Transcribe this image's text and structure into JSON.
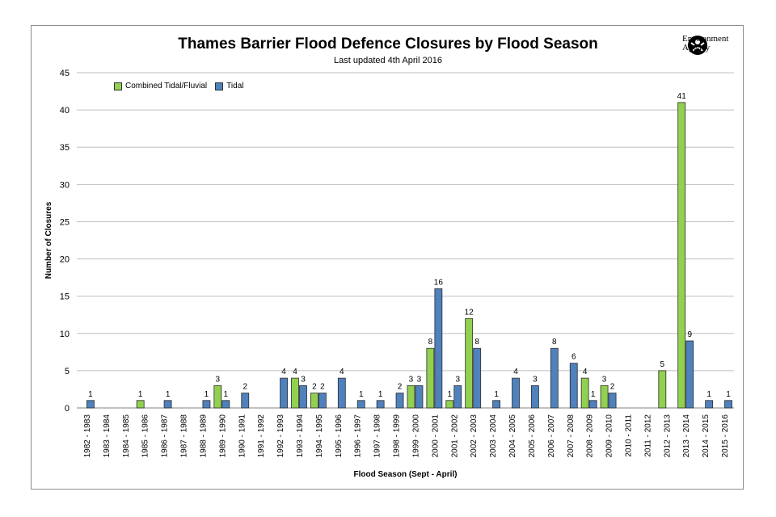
{
  "chart_data": {
    "type": "bar",
    "title": "Thames Barrier Flood Defence Closures by Flood Season",
    "subtitle": "Last updated 4th April 2016",
    "xlabel": "Flood Season (Sept - April)",
    "ylabel": "Number of Closures",
    "ylim": [
      0,
      45
    ],
    "yticks": [
      0,
      5,
      10,
      15,
      20,
      25,
      30,
      35,
      40,
      45
    ],
    "grid": true,
    "legend_position": "top-left",
    "categories": [
      "1982 - 1983",
      "1983 - 1984",
      "1984 - 1985",
      "1985 - 1986",
      "1986 - 1987",
      "1987 - 1988",
      "1988 - 1989",
      "1989 - 1990",
      "1990 - 1991",
      "1991 - 1992",
      "1992 - 1993",
      "1993 - 1994",
      "1994 - 1995",
      "1995 - 1996",
      "1996 - 1997",
      "1997 - 1998",
      "1998 - 1999",
      "1999 - 2000",
      "2000 - 2001",
      "2001 - 2002",
      "2002 - 2003",
      "2003 - 2004",
      "2004 - 2005",
      "2005 - 2006",
      "2006 - 2007",
      "2007 - 2008",
      "2008 - 2009",
      "2009 - 2010",
      "2010 - 2011",
      "2011 - 2012",
      "2012 - 2013",
      "2013 - 2014",
      "2014 - 2015",
      "2015 - 2016"
    ],
    "series": [
      {
        "name": "Combined Tidal/Fluvial",
        "color": "#92d050",
        "values": [
          0,
          0,
          0,
          1,
          0,
          0,
          0,
          3,
          0,
          0,
          0,
          4,
          2,
          0,
          0,
          0,
          0,
          3,
          8,
          1,
          12,
          0,
          0,
          0,
          0,
          0,
          4,
          3,
          0,
          0,
          5,
          41,
          0,
          0
        ]
      },
      {
        "name": "Tidal",
        "color": "#4f81bd",
        "values": [
          1,
          0,
          0,
          0,
          1,
          0,
          1,
          1,
          2,
          0,
          4,
          3,
          2,
          4,
          1,
          1,
          2,
          3,
          16,
          3,
          8,
          1,
          4,
          3,
          8,
          6,
          1,
          2,
          0,
          0,
          0,
          9,
          1,
          1
        ]
      }
    ]
  },
  "branding": {
    "logo_line1": "Environment",
    "logo_line2": "Agency",
    "logo_icon": "environment-agency-logo-icon"
  }
}
